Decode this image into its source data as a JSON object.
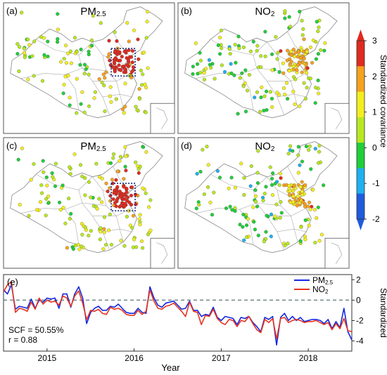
{
  "maps": [
    {
      "label": "(a)",
      "title_main": "PM",
      "title_sub": "2.5",
      "variable": "PM2.5",
      "region_box": true,
      "hotspot": "north-china-plain"
    },
    {
      "label": "(b)",
      "title_main": "NO",
      "title_sub": "2",
      "variable": "NO2",
      "region_box": false,
      "hotspot": "north-china-plain"
    },
    {
      "label": "(c)",
      "title_main": "PM",
      "title_sub": "2.5",
      "variable": "PM2.5",
      "region_box": true,
      "hotspot": "north-china-plain"
    },
    {
      "label": "(d)",
      "title_main": "NO",
      "title_sub": "2",
      "variable": "NO2",
      "region_box": false,
      "hotspot": "north-china-plain"
    }
  ],
  "colorbar": {
    "title": "Standardized covariance",
    "ticks": [
      "3",
      "2",
      "1",
      "0",
      "-1",
      "-2"
    ],
    "range": [
      -2,
      3
    ],
    "colors": [
      "#1f5bdc",
      "#1fb0f0",
      "#1fcf3a",
      "#b8e81f",
      "#f4ee1f",
      "#f5a21f",
      "#e02a1f"
    ]
  },
  "chart_data": {
    "type": "line",
    "label": "(e)",
    "xlabel": "Year",
    "ylabel": "Standardized",
    "x_ticks": [
      "2015",
      "2016",
      "2017",
      "2018"
    ],
    "xlim": [
      2014.5,
      2018.5
    ],
    "ylim": [
      -5,
      2.5
    ],
    "y_ticks": [
      "2",
      "0",
      "-2",
      "-4"
    ],
    "reference_line": 0,
    "annotation": [
      "SCF = 50.55%",
      "r = 0.88"
    ],
    "series": [
      {
        "name_main": "PM",
        "name_sub": "2.5",
        "color": "#1428e0",
        "values": [
          1.0,
          0.6,
          1.5,
          -0.9,
          -0.6,
          -0.7,
          -0.8,
          0.1,
          -0.8,
          0.0,
          -0.2,
          0.2,
          0.1,
          0.2,
          -0.8,
          0.6,
          0.6,
          -0.7,
          0.6,
          1.3,
          0.2,
          -2.3,
          -1.2,
          -0.8,
          -0.6,
          -1.0,
          -1.0,
          -0.6,
          -0.7,
          -0.4,
          -0.8,
          -1.2,
          -1.3,
          -1.3,
          -0.8,
          -1.2,
          -1.3,
          1.3,
          0.2,
          -0.5,
          -0.7,
          -0.3,
          -0.2,
          -0.1,
          -0.5,
          -0.9,
          -0.8,
          -0.1,
          -1.0,
          -1.0,
          -1.6,
          -1.4,
          -1.5,
          -0.7,
          -1.7,
          -2.0,
          -1.6,
          -1.7,
          -1.8,
          -2.4,
          -1.7,
          -1.8,
          -1.6,
          -2.2,
          -2.6,
          -3.1,
          -1.7,
          -1.9,
          -1.6,
          -4.4,
          -1.7,
          -1.3,
          -2.0,
          -1.6,
          -2.0,
          -1.7,
          -2.1,
          -2.0,
          -1.9,
          -1.9,
          -2.0,
          -2.3,
          -1.9,
          -2.8,
          -2.1,
          -2.7,
          -0.8,
          -3.1,
          -3.9
        ]
      },
      {
        "name_main": "NO",
        "name_sub": "2",
        "color": "#e8321e",
        "values": [
          0.8,
          1.5,
          1.8,
          -1.2,
          -0.8,
          -0.9,
          -1.1,
          -0.2,
          -0.9,
          0.2,
          -0.4,
          0.0,
          -0.2,
          -0.1,
          -0.5,
          0.4,
          0.2,
          -0.6,
          0.4,
          0.9,
          -0.3,
          -1.9,
          -1.0,
          -1.1,
          -0.9,
          -1.3,
          -1.4,
          -0.7,
          -0.9,
          -0.8,
          -1.0,
          -1.4,
          -1.5,
          -1.5,
          -1.0,
          -1.4,
          -1.1,
          1.0,
          -0.1,
          -0.8,
          -0.9,
          -0.6,
          -0.5,
          -0.3,
          -0.7,
          -1.1,
          -1.6,
          -0.2,
          -1.1,
          -1.2,
          -2.4,
          -1.5,
          -1.6,
          -0.9,
          -1.8,
          -2.2,
          -2.4,
          -1.9,
          -2.0,
          -2.6,
          -2.0,
          -2.1,
          -1.6,
          -2.3,
          -2.9,
          -3.2,
          -1.9,
          -2.2,
          -1.8,
          -3.8,
          -1.8,
          -1.7,
          -2.2,
          -2.0,
          -1.9,
          -2.0,
          -2.2,
          -2.1,
          -2.1,
          -2.0,
          -2.2,
          -2.4,
          -2.2,
          -2.9,
          -2.3,
          -2.8,
          -1.8,
          -3.0,
          -3.1
        ]
      }
    ]
  }
}
